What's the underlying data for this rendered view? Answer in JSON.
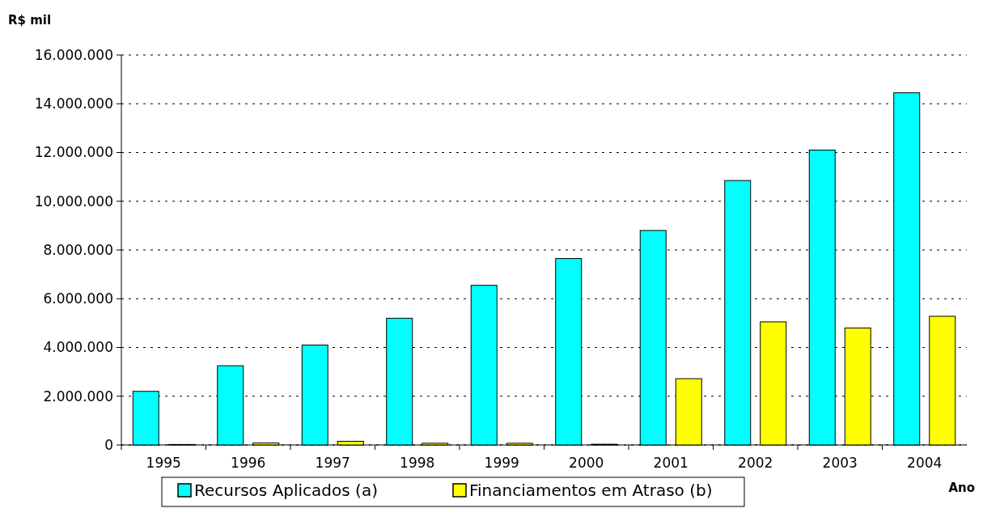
{
  "chart_data": {
    "type": "bar",
    "ylabel": "R$ mil",
    "xlabel": "Ano",
    "categories": [
      "1995",
      "1996",
      "1997",
      "1998",
      "1999",
      "2000",
      "2001",
      "2002",
      "2003",
      "2004"
    ],
    "series": [
      {
        "name": "Recursos  Aplicados (a)",
        "color": "#00ffff",
        "values": [
          2200000,
          3250000,
          4100000,
          5200000,
          6550000,
          7650000,
          8800000,
          10850000,
          12100000,
          14450000
        ]
      },
      {
        "name": "Financiamentos em Atraso (b)",
        "color": "#ffff00",
        "values": [
          20000,
          80000,
          150000,
          70000,
          70000,
          30000,
          2720000,
          5050000,
          4800000,
          5280000
        ]
      }
    ],
    "ylim": [
      0,
      16000000
    ],
    "yticks": [
      {
        "value": 0,
        "label": "0"
      },
      {
        "value": 2000000,
        "label": "2.000.000"
      },
      {
        "value": 4000000,
        "label": "4.000.000"
      },
      {
        "value": 6000000,
        "label": "6.000.000"
      },
      {
        "value": 8000000,
        "label": "8.000.000"
      },
      {
        "value": 10000000,
        "label": "10.000.000"
      },
      {
        "value": 12000000,
        "label": "12.000.000"
      },
      {
        "value": 14000000,
        "label": "14.000.000"
      },
      {
        "value": 16000000,
        "label": "16.000.000"
      }
    ],
    "grid": "y",
    "legend": "bottom"
  }
}
